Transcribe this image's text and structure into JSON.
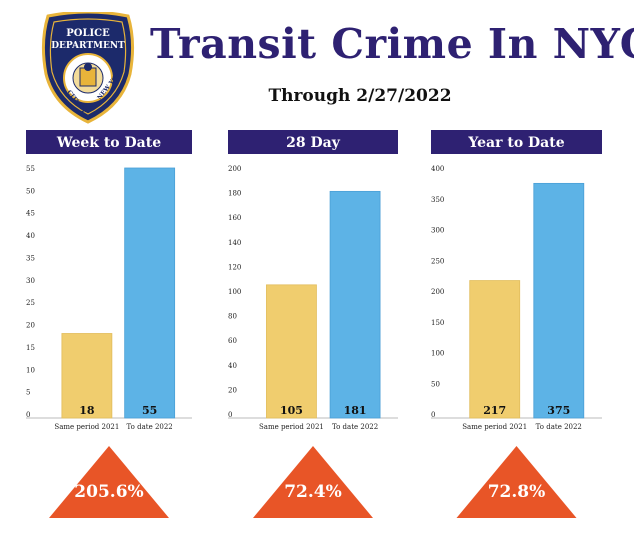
{
  "header": {
    "title": "Transit Crime In NYC",
    "subtitle": "Through 2/27/2022"
  },
  "badge": {
    "line1": "POLICE",
    "line2": "DEPARTMENT",
    "arc_left": "CITY OF",
    "arc_right": "NEW YORK",
    "colors": {
      "navy": "#1c2a6b",
      "gold": "#e8b43a"
    }
  },
  "colors": {
    "header_bar": "#2e2172",
    "bar_2021": "#f0cd6e",
    "bar_2022": "#5db3e6",
    "triangle": "#e85527",
    "title_text": "#2e2172"
  },
  "chart_data": [
    {
      "type": "bar",
      "title": "Week to Date",
      "categories": [
        "Same period 2021",
        "To date 2022"
      ],
      "values": [
        18,
        55
      ],
      "value_labels": [
        "18",
        "55"
      ],
      "ylim": [
        0,
        55
      ],
      "yticks": [
        0,
        5,
        10,
        15,
        20,
        25,
        30,
        35,
        40,
        45,
        50,
        55
      ],
      "change_label": "205.6%",
      "grid": false
    },
    {
      "type": "bar",
      "title": "28 Day",
      "categories": [
        "Same period 2021",
        "To date 2022"
      ],
      "values": [
        105,
        181
      ],
      "value_labels": [
        "105",
        "181"
      ],
      "ylim": [
        0,
        200
      ],
      "yticks": [
        0,
        20,
        40,
        60,
        80,
        100,
        120,
        140,
        160,
        180,
        200
      ],
      "change_label": "72.4%",
      "grid": false
    },
    {
      "type": "bar",
      "title": "Year to Date",
      "categories": [
        "Same period 2021",
        "To date 2022"
      ],
      "values": [
        217,
        375
      ],
      "value_labels": [
        "217",
        "375"
      ],
      "ylim": [
        0,
        400
      ],
      "yticks": [
        0,
        50,
        100,
        150,
        200,
        250,
        300,
        350,
        400
      ],
      "change_label": "72.8%",
      "grid": false
    }
  ]
}
